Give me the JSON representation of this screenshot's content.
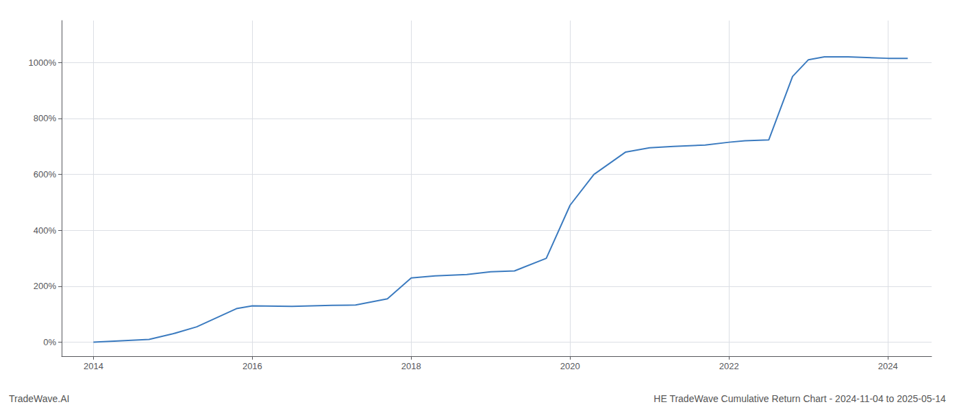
{
  "chart_data": {
    "type": "line",
    "title": "HE TradeWave Cumulative Return Chart - 2024-11-04 to 2025-05-14",
    "annotations": [
      "TradeWave.AI"
    ],
    "x": [
      2014.0,
      2014.7,
      2015.0,
      2015.3,
      2015.8,
      2016.0,
      2016.5,
      2017.0,
      2017.3,
      2017.7,
      2018.0,
      2018.3,
      2018.7,
      2019.0,
      2019.3,
      2019.7,
      2020.0,
      2020.3,
      2020.7,
      2021.0,
      2021.3,
      2021.7,
      2022.0,
      2022.2,
      2022.5,
      2022.8,
      2023.0,
      2023.2,
      2023.5,
      2024.0,
      2024.25
    ],
    "values": [
      0,
      10,
      30,
      55,
      120,
      130,
      128,
      132,
      133,
      155,
      230,
      237,
      242,
      252,
      255,
      300,
      490,
      600,
      680,
      695,
      700,
      705,
      715,
      720,
      723,
      950,
      1010,
      1020,
      1020,
      1015,
      1015
    ],
    "color": "#3a7abf",
    "xlim": [
      2013.6,
      2024.55
    ],
    "xticks": [
      2014,
      2016,
      2018,
      2020,
      2022,
      2024
    ],
    "ylim": [
      -50,
      1150
    ],
    "yticks": [
      {
        "value": 0,
        "label": "0%"
      },
      {
        "value": 200,
        "label": "200%"
      },
      {
        "value": 400,
        "label": "400%"
      },
      {
        "value": 600,
        "label": "600%"
      },
      {
        "value": 800,
        "label": "800%"
      },
      {
        "value": 1000,
        "label": "1000%"
      }
    ],
    "grid": true
  }
}
